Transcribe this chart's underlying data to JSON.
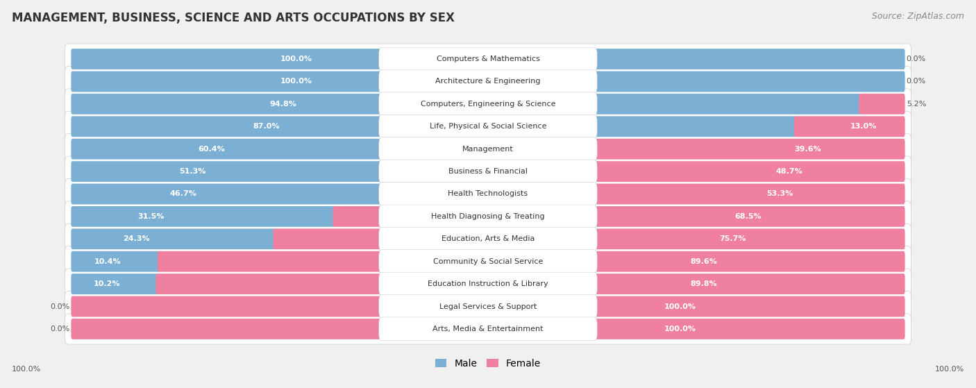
{
  "title": "MANAGEMENT, BUSINESS, SCIENCE AND ARTS OCCUPATIONS BY SEX",
  "source": "Source: ZipAtlas.com",
  "categories": [
    "Computers & Mathematics",
    "Architecture & Engineering",
    "Computers, Engineering & Science",
    "Life, Physical & Social Science",
    "Management",
    "Business & Financial",
    "Health Technologists",
    "Health Diagnosing & Treating",
    "Education, Arts & Media",
    "Community & Social Service",
    "Education Instruction & Library",
    "Legal Services & Support",
    "Arts, Media & Entertainment"
  ],
  "male": [
    100.0,
    100.0,
    94.8,
    87.0,
    60.4,
    51.3,
    46.7,
    31.5,
    24.3,
    10.4,
    10.2,
    0.0,
    0.0
  ],
  "female": [
    0.0,
    0.0,
    5.2,
    13.0,
    39.6,
    48.7,
    53.3,
    68.5,
    75.7,
    89.6,
    89.8,
    100.0,
    100.0
  ],
  "male_color": "#7BAFD4",
  "female_color": "#F080A0",
  "background_color": "#f0f0f0",
  "row_bg_color": "#ffffff",
  "title_fontsize": 12,
  "source_fontsize": 9,
  "legend_fontsize": 10,
  "bar_height": 0.62,
  "label_fontsize": 8,
  "pct_fontsize": 8
}
